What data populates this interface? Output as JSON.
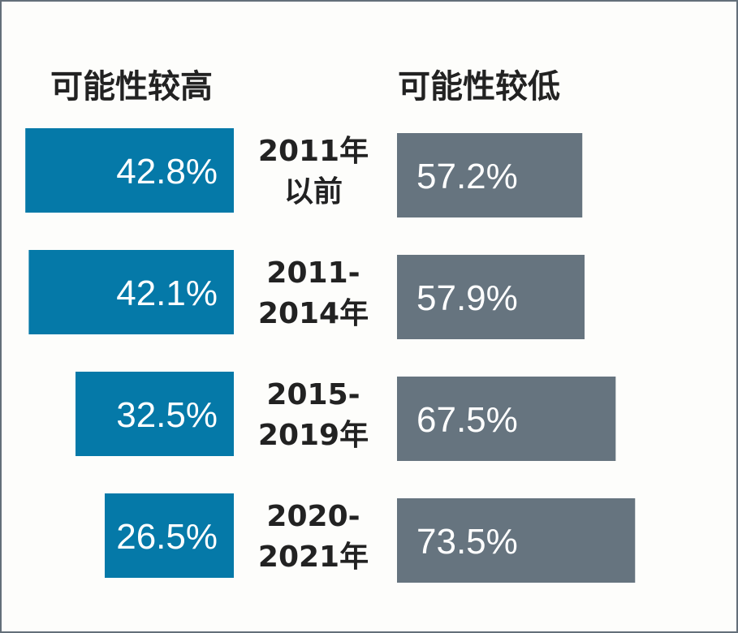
{
  "chart_data": {
    "type": "bar",
    "left_header": "可能性较高",
    "right_header": "可能性较低",
    "categories": [
      [
        "2011年",
        "以前"
      ],
      [
        "2011-",
        "2014年"
      ],
      [
        "2015-",
        "2019年"
      ],
      [
        "2020-",
        "2021年"
      ]
    ],
    "series": [
      {
        "values": [
          42.8,
          42.1,
          32.5,
          26.5
        ],
        "labels": [
          "42.8%",
          "42.1%",
          "32.5%",
          "26.5%"
        ]
      },
      {
        "values": [
          57.2,
          57.9,
          67.5,
          73.5
        ],
        "labels": [
          "57.2%",
          "57.9%",
          "67.5%",
          "73.5%"
        ]
      }
    ],
    "colors": {
      "high": "#0579a8",
      "low": "#66747f"
    }
  }
}
